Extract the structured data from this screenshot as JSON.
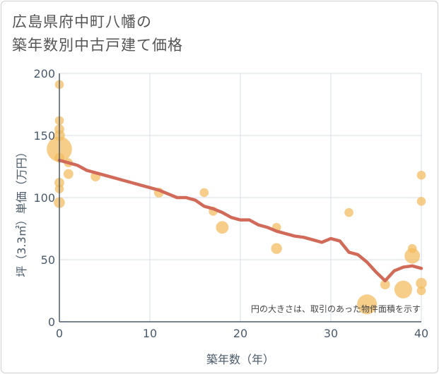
{
  "chart_data": {
    "type": "scatter",
    "title_line1": "広島県府中町八幡の",
    "title_line2": "築年数別中古戸建て価格",
    "xlabel": "築年数（年）",
    "ylabel": "坪（3.3㎡）単価（万円）",
    "xlim": [
      0,
      40
    ],
    "ylim": [
      0,
      200
    ],
    "x_ticks": [
      0,
      10,
      20,
      30,
      40
    ],
    "y_ticks": [
      0,
      50,
      100,
      150,
      200
    ],
    "note": "円の大きさは、取引のあった物件面積を示す",
    "colors": {
      "bubble": "#f2bb5c",
      "line": "#d26a5a",
      "grid": "#d7dde6",
      "axis": "#4a5a6a"
    },
    "points": [
      {
        "x": 0,
        "y": 191,
        "size": 1
      },
      {
        "x": 0,
        "y": 162,
        "size": 1
      },
      {
        "x": 0,
        "y": 155,
        "size": 1.2
      },
      {
        "x": 0,
        "y": 150,
        "size": 1.5
      },
      {
        "x": 0,
        "y": 139,
        "size": 8
      },
      {
        "x": 0,
        "y": 132,
        "size": 1.2
      },
      {
        "x": 0,
        "y": 112,
        "size": 1.2
      },
      {
        "x": 0,
        "y": 107,
        "size": 1
      },
      {
        "x": 0,
        "y": 96,
        "size": 1.5
      },
      {
        "x": 1,
        "y": 119,
        "size": 1.2
      },
      {
        "x": 1,
        "y": 128,
        "size": 1
      },
      {
        "x": 4,
        "y": 117,
        "size": 1.2
      },
      {
        "x": 11,
        "y": 104,
        "size": 1.2
      },
      {
        "x": 16,
        "y": 104,
        "size": 1
      },
      {
        "x": 17,
        "y": 89,
        "size": 1
      },
      {
        "x": 18,
        "y": 76,
        "size": 2
      },
      {
        "x": 24,
        "y": 76,
        "size": 1
      },
      {
        "x": 24,
        "y": 59,
        "size": 1.5
      },
      {
        "x": 32,
        "y": 88,
        "size": 1
      },
      {
        "x": 34,
        "y": 14,
        "size": 5
      },
      {
        "x": 36,
        "y": 30,
        "size": 1.2
      },
      {
        "x": 38,
        "y": 26,
        "size": 4
      },
      {
        "x": 39,
        "y": 53,
        "size": 3
      },
      {
        "x": 39,
        "y": 59,
        "size": 1
      },
      {
        "x": 40,
        "y": 118,
        "size": 1
      },
      {
        "x": 40,
        "y": 97,
        "size": 1
      },
      {
        "x": 40,
        "y": 31,
        "size": 1.5
      },
      {
        "x": 40,
        "y": 25,
        "size": 1
      }
    ],
    "trend": {
      "x": [
        0,
        1,
        2,
        3,
        4,
        5,
        6,
        7,
        8,
        9,
        10,
        11,
        12,
        13,
        14,
        15,
        16,
        17,
        18,
        19,
        20,
        21,
        22,
        23,
        24,
        25,
        26,
        27,
        28,
        29,
        30,
        31,
        32,
        33,
        34,
        35,
        36,
        37,
        38,
        39,
        40
      ],
      "y": [
        130,
        128,
        126,
        122,
        120,
        118,
        116,
        114,
        112,
        110,
        108,
        106,
        103,
        100,
        100,
        98,
        93,
        91,
        88,
        84,
        82,
        82,
        78,
        76,
        73,
        71,
        69,
        68,
        66,
        64,
        67,
        65,
        56,
        54,
        48,
        40,
        33,
        41,
        44,
        45,
        43
      ]
    }
  }
}
